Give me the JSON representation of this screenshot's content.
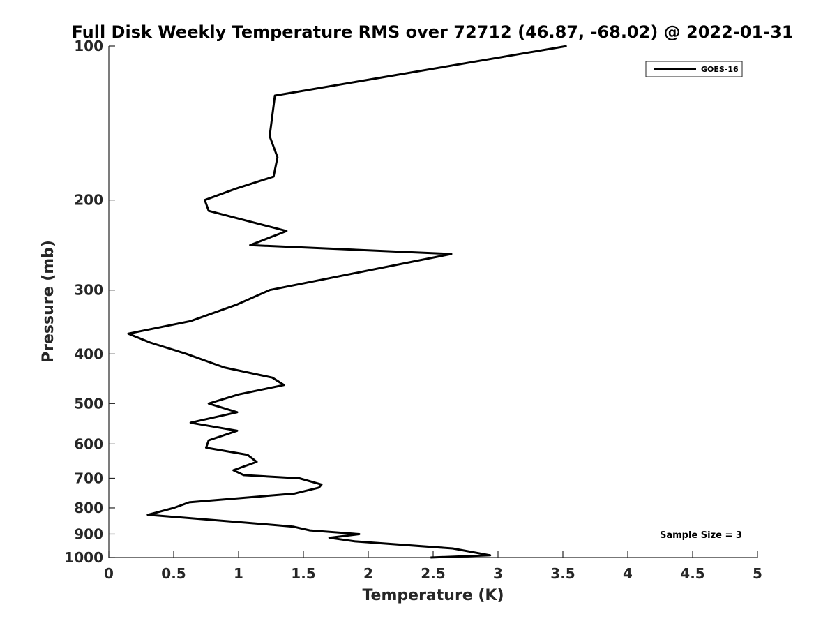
{
  "chart_data": {
    "type": "line",
    "title": "Full Disk Weekly Temperature RMS over 72712 (46.87, -68.02) @ 2022-01-31",
    "xlabel": "Temperature (K)",
    "ylabel": "Pressure (mb)",
    "xlim": [
      0,
      5
    ],
    "ylim": [
      100,
      1000
    ],
    "y_scale": "log",
    "y_reversed": true,
    "x_ticks": [
      0,
      0.5,
      1,
      1.5,
      2,
      2.5,
      3,
      3.5,
      4,
      4.5,
      5
    ],
    "x_tick_labels": [
      "0",
      "0.5",
      "1",
      "1.5",
      "2",
      "2.5",
      "3",
      "3.5",
      "4",
      "4.5",
      "5"
    ],
    "y_ticks": [
      100,
      200,
      300,
      400,
      500,
      600,
      700,
      800,
      900,
      1000
    ],
    "y_tick_labels": [
      "100",
      "200",
      "300",
      "400",
      "500",
      "600",
      "700",
      "800",
      "900",
      "1000"
    ],
    "grid": false,
    "legend_position": "top-right",
    "annotation": "Sample Size = 3",
    "series": [
      {
        "name": "GOES-16",
        "color": "#000000",
        "points": [
          [
            3.53,
            100
          ],
          [
            1.28,
            125
          ],
          [
            1.24,
            150
          ],
          [
            1.3,
            165
          ],
          [
            1.27,
            180
          ],
          [
            0.98,
            190
          ],
          [
            0.74,
            200
          ],
          [
            0.77,
            210
          ],
          [
            1.37,
            230
          ],
          [
            1.09,
            245
          ],
          [
            2.64,
            255
          ],
          [
            1.24,
            300
          ],
          [
            0.99,
            320
          ],
          [
            0.63,
            345
          ],
          [
            0.15,
            365
          ],
          [
            0.32,
            380
          ],
          [
            0.6,
            400
          ],
          [
            0.89,
            425
          ],
          [
            1.26,
            445
          ],
          [
            1.35,
            460
          ],
          [
            1.0,
            480
          ],
          [
            0.77,
            500
          ],
          [
            0.99,
            520
          ],
          [
            0.63,
            545
          ],
          [
            0.99,
            565
          ],
          [
            0.77,
            590
          ],
          [
            0.75,
            610
          ],
          [
            1.07,
            630
          ],
          [
            1.14,
            650
          ],
          [
            0.96,
            675
          ],
          [
            1.04,
            690
          ],
          [
            1.47,
            700
          ],
          [
            1.64,
            720
          ],
          [
            1.62,
            730
          ],
          [
            1.43,
            750
          ],
          [
            0.62,
            780
          ],
          [
            0.5,
            800
          ],
          [
            0.3,
            825
          ],
          [
            1.06,
            855
          ],
          [
            1.42,
            870
          ],
          [
            1.55,
            885
          ],
          [
            1.93,
            900
          ],
          [
            1.7,
            915
          ],
          [
            1.9,
            930
          ],
          [
            2.65,
            960
          ],
          [
            2.94,
            990
          ],
          [
            2.48,
            1000
          ]
        ]
      }
    ]
  }
}
